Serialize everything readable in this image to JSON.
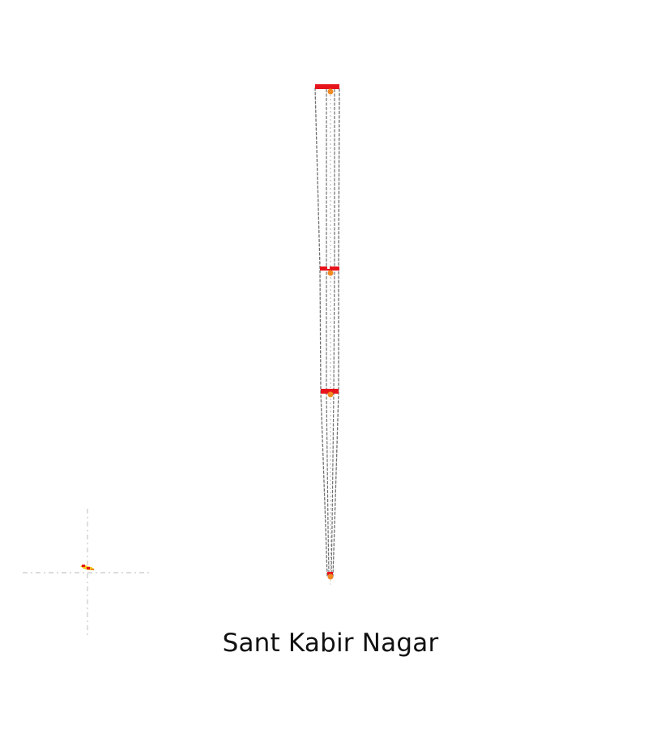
{
  "map": {
    "district_name": "Sant Kabir Nagar",
    "colors": {
      "background": "#ffffff",
      "road_outline": "#707070",
      "marker_red": "#e8141c",
      "marker_orange": "#f08a24",
      "marker_yellow": "#f5c518",
      "guide_lines": "#d0d0d0"
    },
    "icons": [
      "road-bar-marker",
      "location-dot",
      "inset-locator-icon"
    ]
  }
}
